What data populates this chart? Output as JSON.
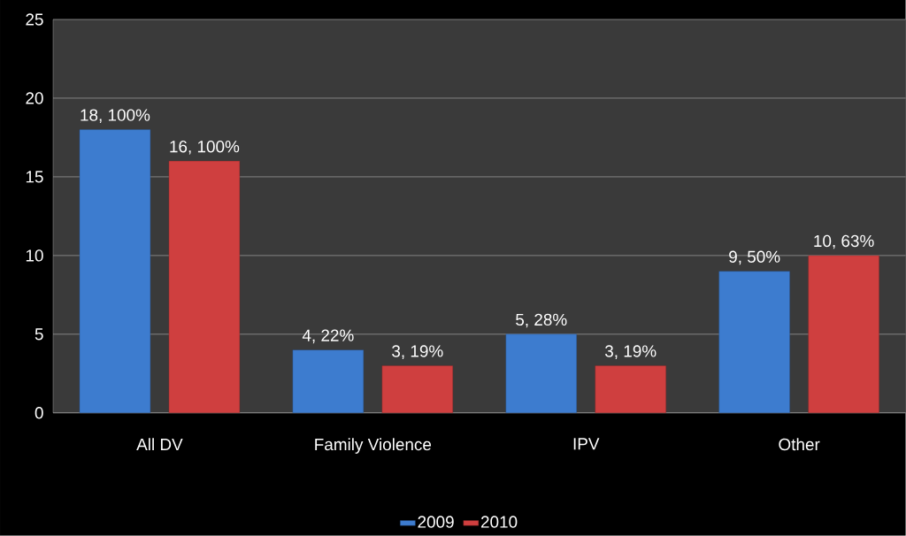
{
  "chart_data": {
    "type": "bar",
    "categories": [
      "All DV",
      "Family Violence",
      "IPV",
      "Other"
    ],
    "series": [
      {
        "name": "2009",
        "color": "#3d7ccf",
        "values": [
          18,
          4,
          5,
          9
        ],
        "value_labels": [
          "18, 100%",
          "4, 22%",
          "5, 28%",
          "9, 50%"
        ]
      },
      {
        "name": "2010",
        "color": "#cf3f3f",
        "values": [
          16,
          3,
          3,
          10
        ],
        "value_labels": [
          "16, 100%",
          "3, 19%",
          "3, 19%",
          "10, 63%"
        ]
      }
    ],
    "ylim": [
      0,
      25
    ],
    "yticks": [
      0,
      5,
      10,
      15,
      20,
      25
    ],
    "grid": "y",
    "legend": "bottom"
  }
}
